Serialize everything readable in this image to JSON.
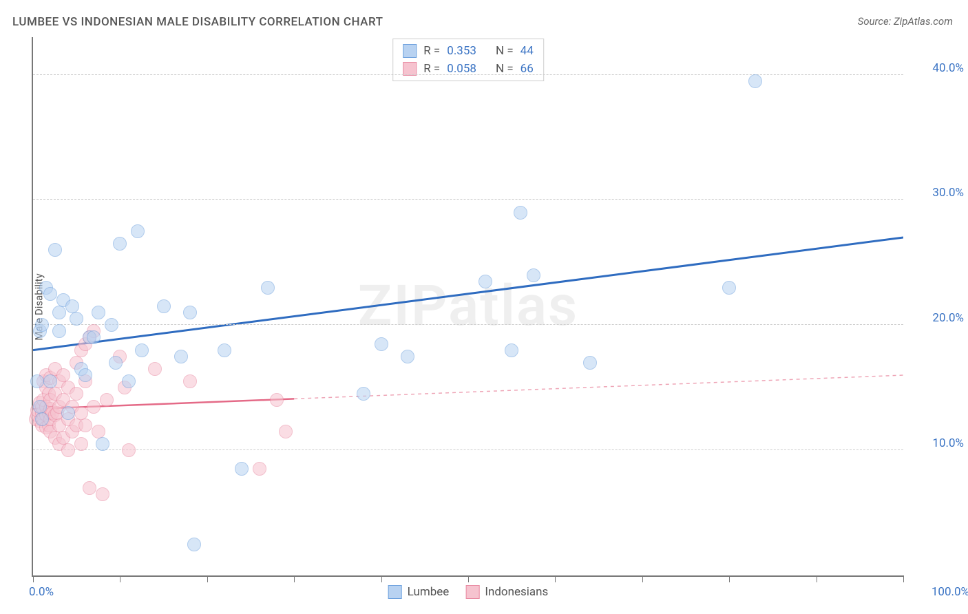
{
  "title": "LUMBEE VS INDONESIAN MALE DISABILITY CORRELATION CHART",
  "source": "Source: ZipAtlas.com",
  "watermark": "ZIPatlas",
  "yaxis_label": "Male Disability",
  "chart": {
    "type": "scatter",
    "xlim": [
      0,
      100
    ],
    "ylim": [
      0,
      43
    ],
    "y_ticks": [
      10,
      20,
      30,
      40
    ],
    "y_tick_labels": [
      "10.0%",
      "20.0%",
      "30.0%",
      "40.0%"
    ],
    "x_ticks": [
      0,
      10,
      20,
      30,
      40,
      50,
      60,
      70,
      80,
      90,
      100
    ],
    "x_tick_labels": {
      "0": "0.0%",
      "100": "100.0%"
    },
    "grid_color": "#cccccc",
    "background_color": "#ffffff",
    "axis_color": "#777777",
    "tick_label_color": "#3b74c4",
    "tick_label_fontsize": 17,
    "title_fontsize": 17,
    "marker_radius": 10,
    "marker_opacity": 0.55,
    "series": [
      {
        "name": "Lumbee",
        "fill_color": "#b8d2f1",
        "stroke_color": "#6ea1de",
        "line_color": "#2f6cc0",
        "line_width": 3,
        "line_dash": "none",
        "regression": {
          "x1": 0,
          "y1": 18.0,
          "x2": 100,
          "y2": 27.0
        },
        "R": 0.353,
        "N": 44,
        "points": [
          [
            0.5,
            15.5
          ],
          [
            0.8,
            13.5
          ],
          [
            0.8,
            19.5
          ],
          [
            1.0,
            20.0
          ],
          [
            1.0,
            12.5
          ],
          [
            1.5,
            23.0
          ],
          [
            2.0,
            22.5
          ],
          [
            2.0,
            15.5
          ],
          [
            2.5,
            26.0
          ],
          [
            3.0,
            21.0
          ],
          [
            3.0,
            19.5
          ],
          [
            3.5,
            22.0
          ],
          [
            4.0,
            13.0
          ],
          [
            4.5,
            21.5
          ],
          [
            5.0,
            20.5
          ],
          [
            5.5,
            16.5
          ],
          [
            6.0,
            16.0
          ],
          [
            6.5,
            19.0
          ],
          [
            7.0,
            19.0
          ],
          [
            7.5,
            21.0
          ],
          [
            8.0,
            10.5
          ],
          [
            9.0,
            20.0
          ],
          [
            9.5,
            17.0
          ],
          [
            10.0,
            26.5
          ],
          [
            11.0,
            15.5
          ],
          [
            12.0,
            27.5
          ],
          [
            12.5,
            18.0
          ],
          [
            15.0,
            21.5
          ],
          [
            17.0,
            17.5
          ],
          [
            18.0,
            21.0
          ],
          [
            18.5,
            2.5
          ],
          [
            22.0,
            18.0
          ],
          [
            24.0,
            8.5
          ],
          [
            27.0,
            23.0
          ],
          [
            38.0,
            14.5
          ],
          [
            40.0,
            18.5
          ],
          [
            43.0,
            17.5
          ],
          [
            52.0,
            23.5
          ],
          [
            55.0,
            18.0
          ],
          [
            56.0,
            29.0
          ],
          [
            57.5,
            24.0
          ],
          [
            64.0,
            17.0
          ],
          [
            80.0,
            23.0
          ],
          [
            83.0,
            39.5
          ]
        ]
      },
      {
        "name": "Indonesians",
        "fill_color": "#f6c3cf",
        "stroke_color": "#e98ba3",
        "line_color": "#e46a87",
        "line_width": 2.5,
        "line_dash": "5,5",
        "solid_until_x": 30,
        "regression": {
          "x1": 0,
          "y1": 13.3,
          "x2": 100,
          "y2": 16.0
        },
        "R": 0.058,
        "N": 66,
        "points": [
          [
            0.3,
            12.5
          ],
          [
            0.5,
            12.8
          ],
          [
            0.5,
            13.2
          ],
          [
            0.8,
            12.3
          ],
          [
            0.8,
            13.8
          ],
          [
            1.0,
            12.0
          ],
          [
            1.0,
            13.0
          ],
          [
            1.0,
            13.5
          ],
          [
            1.2,
            12.5
          ],
          [
            1.2,
            14.0
          ],
          [
            1.2,
            15.5
          ],
          [
            1.5,
            11.8
          ],
          [
            1.5,
            12.8
          ],
          [
            1.5,
            13.5
          ],
          [
            1.5,
            15.0
          ],
          [
            1.5,
            16.0
          ],
          [
            1.8,
            12.0
          ],
          [
            1.8,
            13.0
          ],
          [
            1.8,
            14.5
          ],
          [
            2.0,
            11.5
          ],
          [
            2.0,
            12.5
          ],
          [
            2.0,
            13.3
          ],
          [
            2.0,
            14.0
          ],
          [
            2.0,
            15.8
          ],
          [
            2.2,
            13.0
          ],
          [
            2.5,
            11.0
          ],
          [
            2.5,
            12.8
          ],
          [
            2.5,
            14.5
          ],
          [
            2.5,
            16.5
          ],
          [
            2.8,
            13.0
          ],
          [
            3.0,
            10.5
          ],
          [
            3.0,
            12.0
          ],
          [
            3.0,
            13.5
          ],
          [
            3.0,
            15.5
          ],
          [
            3.5,
            11.0
          ],
          [
            3.5,
            14.0
          ],
          [
            3.5,
            16.0
          ],
          [
            4.0,
            10.0
          ],
          [
            4.0,
            12.5
          ],
          [
            4.0,
            15.0
          ],
          [
            4.5,
            11.5
          ],
          [
            4.5,
            13.5
          ],
          [
            5.0,
            12.0
          ],
          [
            5.0,
            14.5
          ],
          [
            5.0,
            17.0
          ],
          [
            5.5,
            10.5
          ],
          [
            5.5,
            13.0
          ],
          [
            5.5,
            18.0
          ],
          [
            6.0,
            12.0
          ],
          [
            6.0,
            15.5
          ],
          [
            6.0,
            18.5
          ],
          [
            6.5,
            7.0
          ],
          [
            6.5,
            19.0
          ],
          [
            7.0,
            13.5
          ],
          [
            7.0,
            19.5
          ],
          [
            7.5,
            11.5
          ],
          [
            8.0,
            6.5
          ],
          [
            8.5,
            14.0
          ],
          [
            10.0,
            17.5
          ],
          [
            10.5,
            15.0
          ],
          [
            11.0,
            10.0
          ],
          [
            14.0,
            16.5
          ],
          [
            18.0,
            15.5
          ],
          [
            26.0,
            8.5
          ],
          [
            28.0,
            14.0
          ],
          [
            29.0,
            11.5
          ]
        ]
      }
    ]
  },
  "legend_top": {
    "rows": [
      {
        "swatch_fill": "#b8d2f1",
        "swatch_stroke": "#6ea1de",
        "r_label": "R =",
        "r_val": "0.353",
        "n_label": "N =",
        "n_val": "44"
      },
      {
        "swatch_fill": "#f6c3cf",
        "swatch_stroke": "#e98ba3",
        "r_label": "R =",
        "r_val": "0.058",
        "n_label": "N =",
        "n_val": "66"
      }
    ]
  },
  "legend_bottom": {
    "items": [
      {
        "swatch_fill": "#b8d2f1",
        "swatch_stroke": "#6ea1de",
        "label": "Lumbee"
      },
      {
        "swatch_fill": "#f6c3cf",
        "swatch_stroke": "#e98ba3",
        "label": "Indonesians"
      }
    ]
  }
}
